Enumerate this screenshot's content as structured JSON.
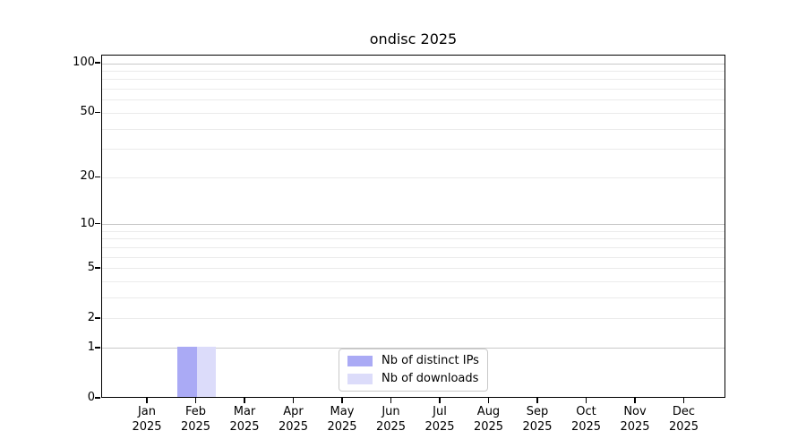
{
  "title": "ondisc 2025",
  "chart_data": {
    "type": "bar",
    "title": "ondisc 2025",
    "categories": [
      "Jan",
      "Feb",
      "Mar",
      "Apr",
      "May",
      "Jun",
      "Jul",
      "Aug",
      "Sep",
      "Oct",
      "Nov",
      "Dec"
    ],
    "year": "2025",
    "series": [
      {
        "name": "Nb of distinct IPs",
        "color": "#aaaaf5",
        "values": [
          0,
          1,
          0,
          0,
          0,
          0,
          0,
          0,
          0,
          0,
          0,
          0
        ]
      },
      {
        "name": "Nb of downloads",
        "color": "#dcdcfa",
        "values": [
          0,
          1,
          0,
          0,
          0,
          0,
          0,
          0,
          0,
          0,
          0,
          0
        ]
      }
    ],
    "y_axis": {
      "scale": "log1p",
      "ticks": [
        0,
        1,
        2,
        5,
        10,
        20,
        50,
        100
      ],
      "emphasized_ticks": [
        1,
        10,
        100
      ],
      "minor_ticks": [
        3,
        4,
        6,
        7,
        8,
        9,
        30,
        40,
        60,
        70,
        80,
        90
      ],
      "ylim": [
        0,
        112
      ]
    },
    "x_axis": {
      "label_format": "month over year"
    },
    "grid": "horizontal major+minor",
    "legend": {
      "position": "bottom-center-inside"
    }
  }
}
